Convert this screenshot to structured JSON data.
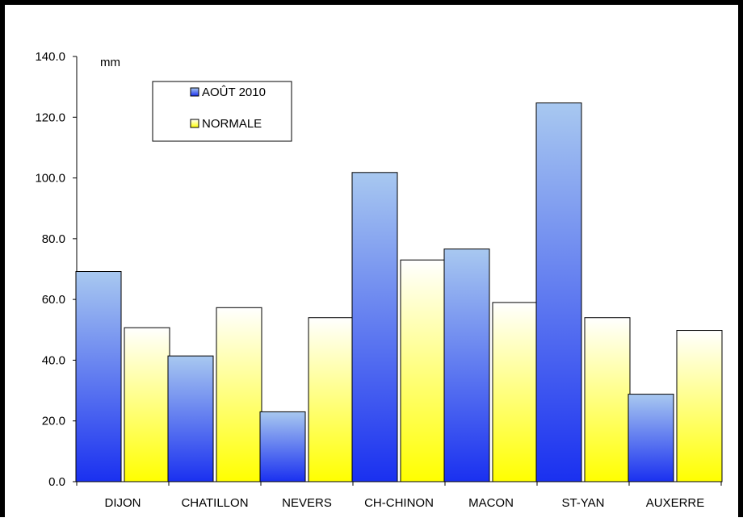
{
  "chart_data": {
    "type": "bar",
    "categories": [
      "DIJON",
      "CHATILLON",
      "NEVERS",
      "CH-CHINON",
      "MACON",
      "ST-YAN",
      "AUXERRE"
    ],
    "series": [
      {
        "name": "AOÛT 2010",
        "values": [
          69.2,
          41.4,
          23.0,
          101.8,
          76.6,
          124.7,
          28.8
        ]
      },
      {
        "name": "NORMALE",
        "values": [
          50.7,
          57.3,
          54.0,
          73.0,
          59.0,
          54.0,
          49.8
        ]
      }
    ],
    "unit_label": "mm",
    "ylim": [
      0,
      140
    ],
    "yticks": [
      "0.0",
      "20.0",
      "40.0",
      "60.0",
      "80.0",
      "100.0",
      "120.0",
      "140.0"
    ],
    "grid": false,
    "legend_position": "top-left",
    "colors": {
      "series1_top": "#a8c8f0",
      "series1_bottom": "#1a30f0",
      "series2_top": "#ffffff",
      "series2_bottom": "#ffff00",
      "frame": "#000000"
    }
  }
}
